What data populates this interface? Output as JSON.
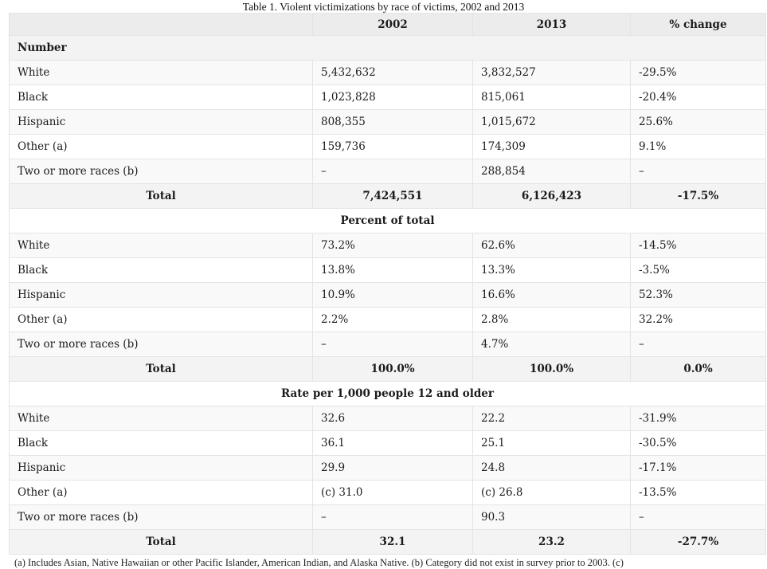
{
  "caption": "Table 1. Violent victimizations by race of victims, 2002 and 2013",
  "headers": [
    "",
    "2002",
    "2013",
    "% change"
  ],
  "sections": [
    {
      "title": "Number",
      "rows": [
        [
          "White",
          "5,432,632",
          "3,832,527",
          "-29.5%"
        ],
        [
          "Black",
          "1,023,828",
          "815,061",
          "-20.4%"
        ],
        [
          "Hispanic",
          "808,355",
          "1,015,672",
          "25.6%"
        ],
        [
          "Other (a)",
          "159,736",
          "174,309",
          "9.1%"
        ],
        [
          "Two or more races (b)",
          "–",
          "288,854",
          "–"
        ]
      ],
      "total": [
        "Total",
        "7,424,551",
        "6,126,423",
        "-17.5%"
      ]
    },
    {
      "title": "Percent of total",
      "rows": [
        [
          "White",
          "73.2%",
          "62.6%",
          "-14.5%"
        ],
        [
          "Black",
          "13.8%",
          "13.3%",
          "-3.5%"
        ],
        [
          "Hispanic",
          "10.9%",
          "16.6%",
          "52.3%"
        ],
        [
          "Other (a)",
          "2.2%",
          "2.8%",
          "32.2%"
        ],
        [
          "Two or more races (b)",
          "–",
          "4.7%",
          "–"
        ]
      ],
      "total": [
        "Total",
        "100.0%",
        "100.0%",
        "0.0%"
      ]
    },
    {
      "title": "Rate per 1,000 people 12 and older",
      "rows": [
        [
          "White",
          "32.6",
          "22.2",
          "-31.9%"
        ],
        [
          "Black",
          "36.1",
          "25.1",
          "-30.5%"
        ],
        [
          "Hispanic",
          "29.9",
          "24.8",
          "-17.1%"
        ],
        [
          "Other (a)",
          "(c) 31.0",
          "(c) 26.8",
          "-13.5%"
        ],
        [
          "Two or more races (b)",
          "–",
          "90.3",
          "–"
        ]
      ],
      "total": [
        "Total",
        "32.1",
        "23.2",
        "-27.7%"
      ]
    }
  ],
  "footnote": "(a) Includes Asian, Native Hawaiian or other Pacific Islander, American Indian, and Alaska Native. (b) Category did not exist in survey prior to 2003. (c)"
}
